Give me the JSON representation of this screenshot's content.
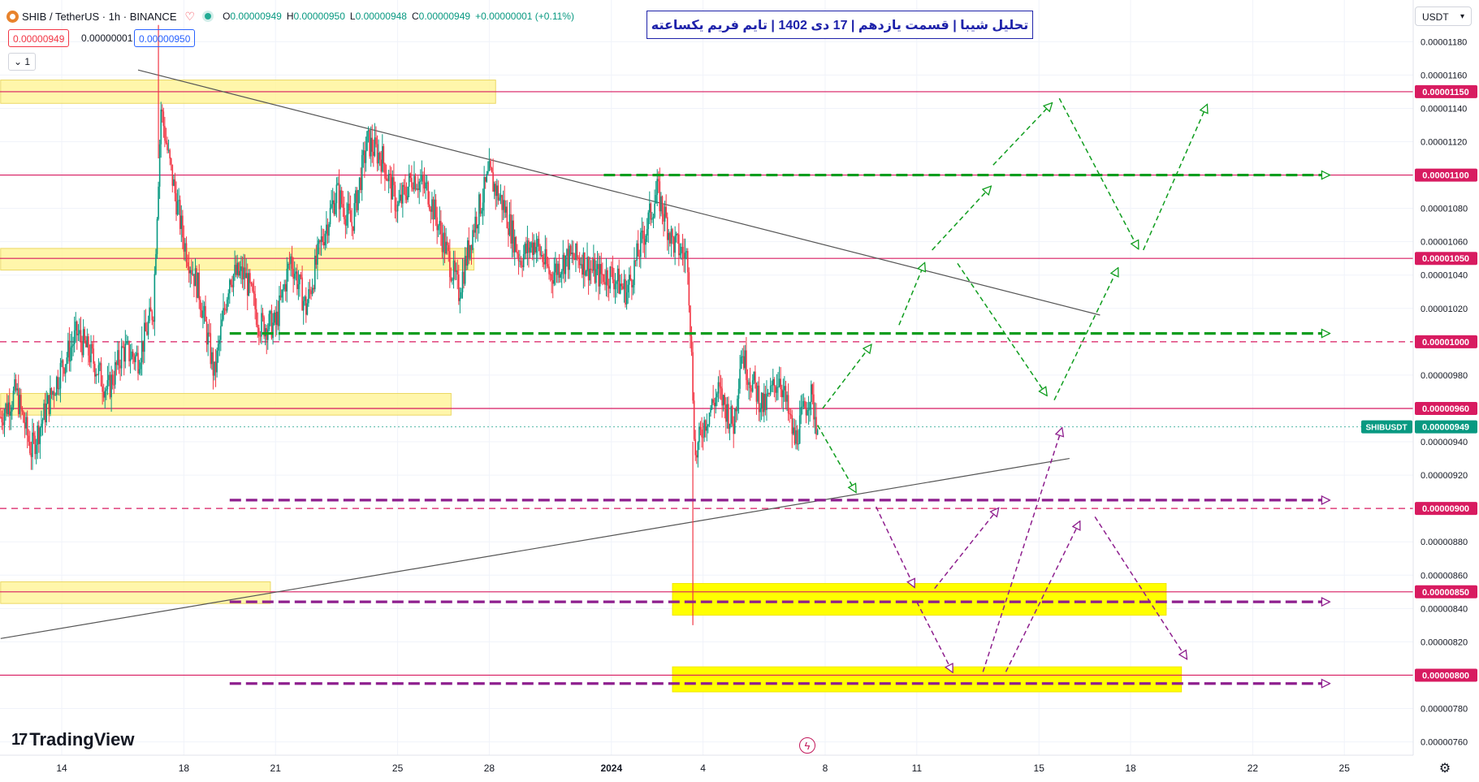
{
  "header": {
    "symbol": "SHIB / TetherUS · 1h · BINANCE",
    "ohlc": [
      {
        "k": "O",
        "v": "0.00000949"
      },
      {
        "k": "H",
        "v": "0.00000950"
      },
      {
        "k": "L",
        "v": "0.00000948"
      },
      {
        "k": "C",
        "v": "0.00000949"
      },
      {
        "k": "",
        "v": "+0.00000001 (+0.11%)"
      }
    ],
    "sell_price": "0.00000949",
    "spread": "0.00000001",
    "buy_price": "0.00000950",
    "collapse_count": "1",
    "currency": "USDT"
  },
  "title": "تحلیل شیبا | قسمت یازدهم | 17 دی 1402 | تایم فریم یکساعته",
  "brand": "TradingView",
  "colors": {
    "up": "#089981",
    "down": "#f23645",
    "level_line": "#d81b60",
    "zone_light": "#fff59d",
    "zone_bright": "#ffff00",
    "green_arrow": "#0f9d1e",
    "purple_arrow": "#8e1f8e",
    "trendline": "#555555",
    "title_blue": "#1e22aa"
  },
  "chart_data": {
    "type": "candlestick",
    "pair": "SHIBUSDT",
    "timeframe": "1h",
    "current_price": 9.49e-06,
    "current_price_label": "0.00000949",
    "current_price_tag": "SHIBUSDT",
    "ylim": [
      7.52e-06,
      1.205e-05
    ],
    "y_ticks": [
      "0.00001180",
      "0.00001160",
      "0.00001140",
      "0.00001120",
      "0.00001080",
      "0.00001060",
      "0.00001040",
      "0.00001020",
      "0.00000980",
      "0.00000940",
      "0.00000920",
      "0.00000880",
      "0.00000860",
      "0.00000840",
      "0.00000820",
      "0.00000780",
      "0.00000760"
    ],
    "y_tick_values": [
      1.18e-05,
      1.16e-05,
      1.14e-05,
      1.12e-05,
      1.08e-05,
      1.06e-05,
      1.04e-05,
      1.02e-05,
      9.8e-06,
      9.4e-06,
      9.2e-06,
      8.8e-06,
      8.6e-06,
      8.4e-06,
      8.2e-06,
      7.8e-06,
      7.6e-06
    ],
    "x_ticks": [
      "14",
      "18",
      "21",
      "25",
      "28",
      "2024",
      "4",
      "8",
      "11",
      "15",
      "18",
      "22",
      "25"
    ],
    "x_tick_dates": [
      "2023-12-14",
      "2023-12-18",
      "2023-12-21",
      "2023-12-25",
      "2023-12-28",
      "2024-01-01",
      "2024-01-04",
      "2024-01-08",
      "2024-01-11",
      "2024-01-15",
      "2024-01-18",
      "2024-01-22",
      "2024-01-25"
    ],
    "levels": [
      {
        "price": 1.15e-05,
        "label": "0.00001150",
        "style": "solid"
      },
      {
        "price": 1.1e-05,
        "label": "0.00001100",
        "style": "solid"
      },
      {
        "price": 1.05e-05,
        "label": "0.00001050",
        "style": "solid"
      },
      {
        "price": 1e-05,
        "label": "0.00001000",
        "style": "dashed"
      },
      {
        "price": 9.6e-06,
        "label": "0.00000960",
        "style": "solid"
      },
      {
        "price": 9e-06,
        "label": "0.00000900",
        "style": "dashed"
      },
      {
        "price": 8.5e-06,
        "label": "0.00000850",
        "style": "solid"
      },
      {
        "price": 8e-06,
        "label": "0.00000800",
        "style": "solid"
      }
    ],
    "price_path": [
      [
        "2023-12-12 00:00",
        9.55e-06
      ],
      [
        "2023-12-12 12:00",
        9.7e-06
      ],
      [
        "2023-12-13 00:00",
        9.35e-06
      ],
      [
        "2023-12-13 12:00",
        9.6e-06
      ],
      [
        "2023-12-14 00:00",
        9.85e-06
      ],
      [
        "2023-12-14 12:00",
        1.005e-05
      ],
      [
        "2023-12-15 00:00",
        9.9e-06
      ],
      [
        "2023-12-15 12:00",
        9.7e-06
      ],
      [
        "2023-12-16 00:00",
        9.95e-06
      ],
      [
        "2023-12-16 12:00",
        9.9e-06
      ],
      [
        "2023-12-17 00:00",
        1.02e-05
      ],
      [
        "2023-12-17 06:00",
        1.14e-05
      ],
      [
        "2023-12-17 12:00",
        1.11e-05
      ],
      [
        "2023-12-18 00:00",
        1.06e-05
      ],
      [
        "2023-12-18 12:00",
        1.03e-05
      ],
      [
        "2023-12-19 00:00",
        9.8e-06
      ],
      [
        "2023-12-19 12:00",
        1.04e-05
      ],
      [
        "2023-12-20 00:00",
        1.04e-05
      ],
      [
        "2023-12-20 12:00",
        1.01e-05
      ],
      [
        "2023-12-21 00:00",
        1.01e-05
      ],
      [
        "2023-12-21 12:00",
        1.05e-05
      ],
      [
        "2023-12-22 00:00",
        1.02e-05
      ],
      [
        "2023-12-22 12:00",
        1.06e-05
      ],
      [
        "2023-12-23 00:00",
        1.09e-05
      ],
      [
        "2023-12-23 12:00",
        1.07e-05
      ],
      [
        "2023-12-24 00:00",
        1.12e-05
      ],
      [
        "2023-12-24 12:00",
        1.11e-05
      ],
      [
        "2023-12-25 00:00",
        1.08e-05
      ],
      [
        "2023-12-25 12:00",
        1.1e-05
      ],
      [
        "2023-12-26 00:00",
        1.09e-05
      ],
      [
        "2023-12-26 12:00",
        1.06e-05
      ],
      [
        "2023-12-27 00:00",
        1.03e-05
      ],
      [
        "2023-12-27 12:00",
        1.07e-05
      ],
      [
        "2023-12-28 00:00",
        1.1e-05
      ],
      [
        "2023-12-28 12:00",
        1.08e-05
      ],
      [
        "2023-12-29 00:00",
        1.05e-05
      ],
      [
        "2023-12-29 12:00",
        1.06e-05
      ],
      [
        "2023-12-30 00:00",
        1.04e-05
      ],
      [
        "2023-12-30 12:00",
        1.05e-05
      ],
      [
        "2023-12-31 00:00",
        1.05e-05
      ],
      [
        "2023-12-31 12:00",
        1.04e-05
      ],
      [
        "2024-01-01 00:00",
        1.04e-05
      ],
      [
        "2024-01-01 12:00",
        1.03e-05
      ],
      [
        "2024-01-02 00:00",
        1.06e-05
      ],
      [
        "2024-01-02 12:00",
        1.09e-05
      ],
      [
        "2024-01-03 00:00",
        1.06e-05
      ],
      [
        "2024-01-03 12:00",
        1.05e-05
      ],
      [
        "2024-01-03 18:00",
        9.3e-06
      ],
      [
        "2024-01-04 00:00",
        9.5e-06
      ],
      [
        "2024-01-04 12:00",
        9.7e-06
      ],
      [
        "2024-01-05 00:00",
        9.5e-06
      ],
      [
        "2024-01-05 06:00",
        9.95e-06
      ],
      [
        "2024-01-05 12:00",
        9.8e-06
      ],
      [
        "2024-01-06 00:00",
        9.6e-06
      ],
      [
        "2024-01-06 12:00",
        9.8e-06
      ],
      [
        "2024-01-07 00:00",
        9.4e-06
      ],
      [
        "2024-01-07 12:00",
        9.7e-06
      ],
      [
        "2024-01-07 18:00",
        9.49e-06
      ]
    ],
    "extremes": [
      {
        "time": "2023-12-17 04:00",
        "price": 1.19e-05
      },
      {
        "time": "2024-01-03 16:00",
        "price": 8.3e-06
      }
    ],
    "zones": [
      {
        "from": "2023-12-12 00:00",
        "to": "2023-12-28 05:00",
        "high": 1.157e-05,
        "low": 1.143e-05,
        "color": "light"
      },
      {
        "from": "2023-12-12 00:00",
        "to": "2023-12-27 12:00",
        "high": 1.056e-05,
        "low": 1.043e-05,
        "color": "light"
      },
      {
        "from": "2023-12-12 00:00",
        "to": "2023-12-26 18:00",
        "high": 9.69e-06,
        "low": 9.56e-06,
        "color": "light"
      },
      {
        "from": "2023-12-12 00:00",
        "to": "2023-12-20 20:00",
        "high": 8.56e-06,
        "low": 8.43e-06,
        "color": "light"
      },
      {
        "from": "2024-01-03 00:00",
        "to": "2024-01-19 04:00",
        "high": 8.55e-06,
        "low": 8.36e-06,
        "color": "bright"
      },
      {
        "from": "2024-01-03 00:00",
        "to": "2024-01-19 16:00",
        "high": 8.05e-06,
        "low": 7.9e-06,
        "color": "bright"
      }
    ],
    "trendlines": [
      {
        "p1": [
          "2023-12-16 12:00",
          1.163e-05
        ],
        "p2": [
          "2024-01-17 00:00",
          1.016e-05
        ]
      },
      {
        "p1": [
          "2023-12-12 00:00",
          8.22e-06
        ],
        "p2": [
          "2024-01-16 00:00",
          9.3e-06
        ]
      }
    ],
    "projection_levels": [
      {
        "from": "2023-12-31 18:00",
        "to": "2024-01-24 12:00",
        "price": 1.1e-05,
        "color": "green"
      },
      {
        "from": "2023-12-19 12:00",
        "to": "2024-01-24 12:00",
        "price": 1.005e-05,
        "color": "green"
      },
      {
        "from": "2023-12-19 12:00",
        "to": "2024-01-24 12:00",
        "price": 9.05e-06,
        "color": "purple"
      },
      {
        "from": "2023-12-19 12:00",
        "to": "2024-01-24 12:00",
        "price": 8.44e-06,
        "color": "purple"
      },
      {
        "from": "2023-12-19 12:00",
        "to": "2024-01-24 12:00",
        "price": 7.95e-06,
        "color": "purple"
      }
    ],
    "projection_paths": [
      {
        "color": "green",
        "points": [
          [
            "2024-01-07 18:00",
            9.5e-06
          ],
          [
            "2024-01-09 00:00",
            9.1e-06
          ],
          [
            "2024-01-07 22:00",
            9.6e-06
          ],
          [
            "2024-01-09 12:00",
            9.98e-06
          ],
          [
            "2024-01-10 10:00",
            1.01e-05
          ],
          [
            "2024-01-11 06:00",
            1.047e-05
          ],
          [
            "2024-01-11 12:00",
            1.055e-05
          ],
          [
            "2024-01-13 10:00",
            1.093e-05
          ],
          [
            "2024-01-13 12:00",
            1.106e-05
          ],
          [
            "2024-01-15 10:00",
            1.143e-05
          ],
          [
            "2024-01-15 16:00",
            1.146e-05
          ],
          [
            "2024-01-18 06:00",
            1.056e-05
          ],
          [
            "2024-01-18 10:00",
            1.055e-05
          ],
          [
            "2024-01-20 12:00",
            1.142e-05
          ]
        ]
      },
      {
        "color": "green",
        "points": [
          [
            "2024-01-12 08:00",
            1.047e-05
          ],
          [
            "2024-01-15 06:00",
            9.68e-06
          ],
          [
            "2024-01-15 12:00",
            9.65e-06
          ],
          [
            "2024-01-17 14:00",
            1.044e-05
          ]
        ]
      },
      {
        "color": "purple",
        "points": [
          [
            "2024-01-09 16:00",
            9.01e-06
          ],
          [
            "2024-01-10 22:00",
            8.53e-06
          ],
          [
            "2024-01-11 14:00",
            8.52e-06
          ],
          [
            "2024-01-13 16:00",
            9e-06
          ],
          [
            "2024-01-13 04:00",
            8.02e-06
          ],
          [
            "2024-01-15 18:00",
            9.48e-06
          ],
          [
            "2024-01-11 00:00",
            8.44e-06
          ],
          [
            "2024-01-12 04:00",
            8.02e-06
          ],
          [
            "2024-01-13 22:00",
            8.02e-06
          ],
          [
            "2024-01-16 08:00",
            8.92e-06
          ],
          [
            "2024-01-16 20:00",
            8.95e-06
          ],
          [
            "2024-01-19 20:00",
            8.1e-06
          ]
        ]
      }
    ]
  }
}
